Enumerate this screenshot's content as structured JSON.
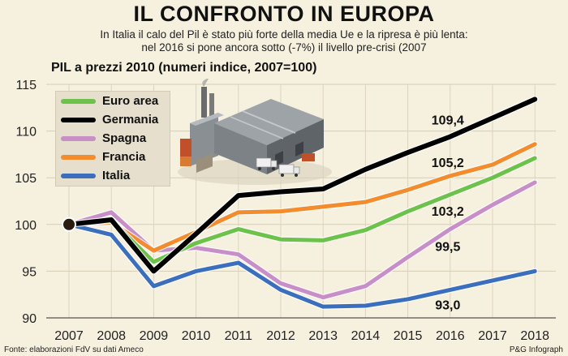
{
  "title": "IL CONFRONTO IN EUROPA",
  "subtitle_lines": [
    "In Italia il calo del Pil è stato più forte della media Ue e la ripresa è più lenta:",
    "nel 2016 si pone ancora sotto (-7%) il livello pre-crisi (2007"
  ],
  "source": "Fonte: elaborazioni FdV su dati Ameco",
  "credit": "P&G Infograph",
  "illustration": "warehouse-factory-illustration",
  "chart_data": {
    "type": "line",
    "title": "PIL a prezzi 2010 (numeri indice, 2007=100)",
    "x": [
      "2007",
      "2008",
      "2009",
      "2010",
      "2011",
      "2012",
      "2013",
      "2014",
      "2015",
      "2016",
      "2017",
      "2018"
    ],
    "ylim": [
      90,
      115
    ],
    "yticks": [
      90,
      95,
      100,
      105,
      110,
      115
    ],
    "grid": true,
    "legend_position": "top-left",
    "series": [
      {
        "name": "Euro area",
        "color": "#6cc24a",
        "values": [
          100,
          100.4,
          96.0,
          98.0,
          99.5,
          98.4,
          98.3,
          99.4,
          101.4,
          103.2,
          105.0,
          107.1
        ],
        "label": "103,2",
        "label_index": 9
      },
      {
        "name": "Germania",
        "color": "#000000",
        "values": [
          100,
          100.5,
          95.0,
          99.0,
          103.1,
          103.5,
          103.8,
          105.9,
          107.7,
          109.4,
          111.4,
          113.4
        ],
        "label": "109,4",
        "label_index": 9
      },
      {
        "name": "Spagna",
        "color": "#c88ec8",
        "values": [
          100,
          101.3,
          97.2,
          97.5,
          96.8,
          93.7,
          92.2,
          93.4,
          96.5,
          99.5,
          102.1,
          104.5
        ],
        "label": "99,5",
        "label_index": 9
      },
      {
        "name": "Francia",
        "color": "#f28c2c",
        "values": [
          100,
          100.2,
          97.2,
          99.2,
          101.3,
          101.4,
          101.9,
          102.4,
          103.7,
          105.2,
          106.4,
          108.6
        ],
        "label": "105,2",
        "label_index": 9
      },
      {
        "name": "Italia",
        "color": "#3b6fbd",
        "values": [
          100,
          98.9,
          93.4,
          95.0,
          95.9,
          93.0,
          91.2,
          91.3,
          92.0,
          93.0,
          94.0,
          95.0
        ],
        "label": "93,0",
        "label_index": 9
      }
    ]
  }
}
